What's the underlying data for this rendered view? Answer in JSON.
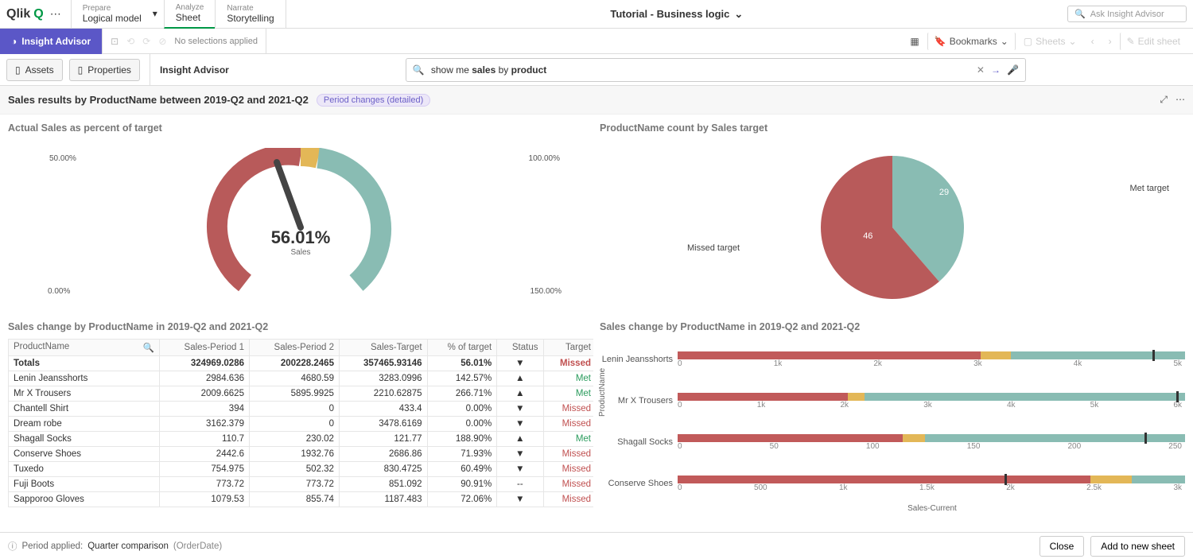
{
  "brand": "Qlik",
  "tabs": [
    {
      "sup": "Prepare",
      "sub": "Logical model",
      "chev": true
    },
    {
      "sup": "Analyze",
      "sub": "Sheet"
    },
    {
      "sup": "Narrate",
      "sub": "Storytelling"
    }
  ],
  "app_title": "Tutorial - Business logic",
  "ask_placeholder": "Ask Insight Advisor",
  "insight_btn": "Insight Advisor",
  "no_selections": "No selections applied",
  "bookmarks": "Bookmarks",
  "sheets": "Sheets",
  "edit_sheet": "Edit sheet",
  "panel_assets": "Assets",
  "panel_properties": "Properties",
  "ia_label": "Insight Advisor",
  "search": {
    "pre": "show me ",
    "hl1": "sales",
    "mid": " by ",
    "hl2": "product"
  },
  "result_title": "Sales results by ProductName between 2019-Q2 and 2021-Q2",
  "chip": "Period changes (detailed)",
  "gauge": {
    "title": "Actual Sales as percent of target",
    "center_value": "56.01%",
    "center_label": "Sales",
    "labels": {
      "l0": "0.00%",
      "l50": "50.00%",
      "l100": "100.00%",
      "l150": "150.00%"
    },
    "arc_colors": {
      "red": "#b85a5a",
      "yellow": "#e3b757",
      "green": "#89bcb3"
    },
    "value_pct": 56.01,
    "start_angle": -225,
    "end_angle": 45
  },
  "pie": {
    "title": "ProductName count by Sales target",
    "slices": [
      {
        "label": "Met target",
        "value": 29,
        "color": "#89bcb3"
      },
      {
        "label": "Missed target",
        "value": 46,
        "color": "#b85a5a"
      }
    ]
  },
  "table": {
    "title": "Sales change by ProductName in 2019-Q2 and 2021-Q2",
    "cols": [
      "ProductName",
      "Sales-Period 1",
      "Sales-Period 2",
      "Sales-Target",
      "% of target",
      "Status",
      "Target"
    ],
    "totals": {
      "name": "Totals",
      "p1": "324969.0286",
      "p2": "200228.2465",
      "tgt": "357465.93146",
      "pct": "56.01%",
      "arrow": "▼",
      "target": "Missed"
    },
    "rows": [
      {
        "name": "Lenin Jeansshorts",
        "p1": "2984.636",
        "p2": "4680.59",
        "tgt": "3283.0996",
        "pct": "142.57%",
        "arrow": "▲",
        "target": "Met"
      },
      {
        "name": "Mr X Trousers",
        "p1": "2009.6625",
        "p2": "5895.9925",
        "tgt": "2210.62875",
        "pct": "266.71%",
        "arrow": "▲",
        "target": "Met"
      },
      {
        "name": "Chantell Shirt",
        "p1": "394",
        "p2": "0",
        "tgt": "433.4",
        "pct": "0.00%",
        "arrow": "▼",
        "target": "Missed"
      },
      {
        "name": "Dream robe",
        "p1": "3162.379",
        "p2": "0",
        "tgt": "3478.6169",
        "pct": "0.00%",
        "arrow": "▼",
        "target": "Missed"
      },
      {
        "name": "Shagall Socks",
        "p1": "110.7",
        "p2": "230.02",
        "tgt": "121.77",
        "pct": "188.90%",
        "arrow": "▲",
        "target": "Met"
      },
      {
        "name": "Conserve Shoes",
        "p1": "2442.6",
        "p2": "1932.76",
        "tgt": "2686.86",
        "pct": "71.93%",
        "arrow": "▼",
        "target": "Missed"
      },
      {
        "name": "Tuxedo",
        "p1": "754.975",
        "p2": "502.32",
        "tgt": "830.4725",
        "pct": "60.49%",
        "arrow": "▼",
        "target": "Missed"
      },
      {
        "name": "Fuji Boots",
        "p1": "773.72",
        "p2": "773.72",
        "tgt": "851.092",
        "pct": "90.91%",
        "arrow": "--",
        "target": "Missed"
      },
      {
        "name": "Sapporoo Gloves",
        "p1": "1079.53",
        "p2": "855.74",
        "tgt": "1187.483",
        "pct": "72.06%",
        "arrow": "▼",
        "target": "Missed"
      }
    ]
  },
  "bars": {
    "title": "Sales change by ProductName in 2019-Q2 and 2021-Q2",
    "ylabel": "ProductName",
    "xlabel": "Sales-Current",
    "colors": {
      "p1": "#b85a5a",
      "tgt": "#e3b757",
      "p2": "#89bcb3",
      "mark": "#333333"
    },
    "rows": [
      {
        "name": "Lenin Jeansshorts",
        "p1": 2984.636,
        "p2": 4680.59,
        "tgt": 3283.1,
        "max": 5000,
        "ticks": [
          "0",
          "1k",
          "2k",
          "3k",
          "4k",
          "5k"
        ]
      },
      {
        "name": "Mr X Trousers",
        "p1": 2009.66,
        "p2": 5895.99,
        "tgt": 2210.63,
        "max": 6000,
        "ticks": [
          "0",
          "1k",
          "2k",
          "3k",
          "4k",
          "5k",
          "6k"
        ]
      },
      {
        "name": "Shagall Socks",
        "p1": 110.7,
        "p2": 230.02,
        "tgt": 121.77,
        "max": 250,
        "ticks": [
          "0",
          "50",
          "100",
          "150",
          "200",
          "250"
        ]
      },
      {
        "name": "Conserve Shoes",
        "p1": 2442.6,
        "p2": 1932.76,
        "tgt": 2686.86,
        "max": 3000,
        "ticks": [
          "0",
          "500",
          "1k",
          "1.5k",
          "2k",
          "2.5k",
          "3k"
        ]
      }
    ]
  },
  "footer": {
    "period_label": "Period applied:",
    "period_value": "Quarter comparison",
    "period_suffix": "(OrderDate)",
    "close": "Close",
    "add": "Add to new sheet"
  }
}
